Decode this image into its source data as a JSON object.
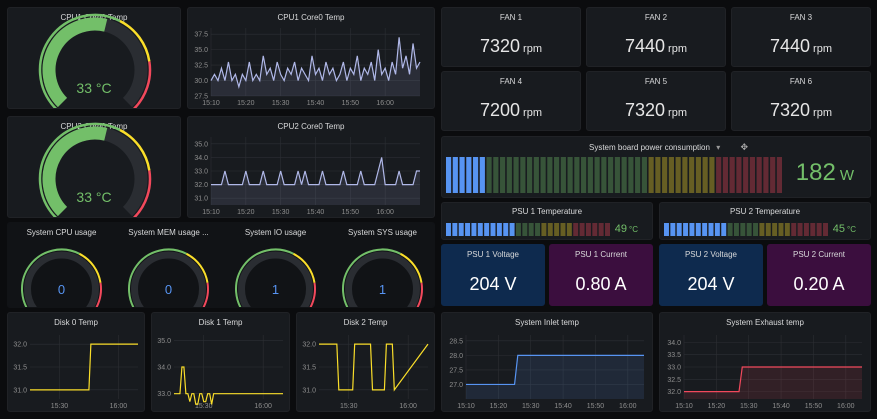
{
  "colors": {
    "green": "#73bf69",
    "yellow": "#fade2a",
    "red": "#f2495c",
    "blue": "#5794f2",
    "axis": "#8e8e8e",
    "grid": "#2c2f34"
  },
  "gauges": [
    {
      "id": "cpu1g",
      "title": "CPU1 Core0 Temp",
      "value": "33 °C",
      "fraction": 0.55,
      "color": "#73bf69",
      "scale": true
    },
    {
      "id": "cpu2g",
      "title": "CPU2 Core0 Temp",
      "value": "33 °C",
      "fraction": 0.55,
      "color": "#73bf69",
      "scale": true
    },
    {
      "id": "sysg1",
      "title": "System CPU usage",
      "value": "0",
      "fraction": 0.0,
      "color": "#5794f2",
      "scale": false
    },
    {
      "id": "sysg2",
      "title": "System MEM usage ...",
      "value": "0",
      "fraction": 0.0,
      "color": "#5794f2",
      "scale": false
    },
    {
      "id": "sysg3",
      "title": "System IO usage",
      "value": "1",
      "fraction": 0.01,
      "color": "#5794f2",
      "scale": false
    },
    {
      "id": "sysg4",
      "title": "System SYS usage",
      "value": "1",
      "fraction": 0.01,
      "color": "#5794f2",
      "scale": false
    }
  ],
  "fans": [
    {
      "name": "FAN 1",
      "value": "7320",
      "unit": "rpm"
    },
    {
      "name": "FAN 2",
      "value": "7440",
      "unit": "rpm"
    },
    {
      "name": "FAN 3",
      "value": "7440",
      "unit": "rpm"
    },
    {
      "name": "FAN 4",
      "value": "7200",
      "unit": "rpm"
    },
    {
      "name": "FAN 5",
      "value": "7320",
      "unit": "rpm"
    },
    {
      "name": "FAN 6",
      "value": "7320",
      "unit": "rpm"
    }
  ],
  "power": {
    "title": "System board power consumption",
    "value": "182",
    "unit": "W",
    "fraction": 0.12,
    "segments": 50
  },
  "psu_temps": [
    {
      "title": "PSU 1 Temperature",
      "value": "49",
      "unit": "°C",
      "fraction": 0.42
    },
    {
      "title": "PSU 2 Temperature",
      "value": "45",
      "unit": "°C",
      "fraction": 0.38
    }
  ],
  "psu_stats": [
    {
      "title": "PSU 1 Voltage",
      "value": "204 V",
      "bg": "#0e2a4e"
    },
    {
      "title": "PSU 1 Current",
      "value": "0.80 A",
      "bg": "#3b0e3e"
    },
    {
      "title": "PSU 2 Voltage",
      "value": "204 V",
      "bg": "#0e2a4e"
    },
    {
      "title": "PSU 2 Current",
      "value": "0.20 A",
      "bg": "#3b0e3e"
    }
  ],
  "chart_data": [
    {
      "id": "c1",
      "type": "line",
      "title": "CPU1 Core0 Temp",
      "color": "#b0b8e8",
      "fill": true,
      "ylim": [
        27.5,
        38.5
      ],
      "yticks": [
        27.5,
        30.0,
        32.5,
        35.0,
        37.5
      ],
      "ytick_labels": [
        "27.5",
        "30.0",
        "32.5",
        "35.0",
        "37.5"
      ],
      "xlim": [
        0,
        60
      ],
      "xticks": [
        0,
        10,
        20,
        30,
        40,
        50
      ],
      "xtick_labels": [
        "15:10",
        "15:20",
        "15:30",
        "15:40",
        "15:50",
        "16:00"
      ],
      "x": [
        0,
        1,
        2,
        3,
        4,
        5,
        6,
        7,
        8,
        9,
        10,
        11,
        12,
        13,
        14,
        15,
        16,
        17,
        18,
        19,
        20,
        21,
        22,
        23,
        24,
        25,
        26,
        27,
        28,
        29,
        30,
        31,
        32,
        33,
        34,
        35,
        36,
        37,
        38,
        39,
        40,
        41,
        42,
        43,
        44,
        45,
        46,
        47,
        48,
        49,
        50,
        51,
        52,
        53,
        54,
        55,
        56,
        57,
        58,
        59,
        60
      ],
      "y": [
        30,
        31,
        30,
        32,
        30,
        33,
        30,
        31,
        29,
        31,
        30,
        33,
        30,
        31,
        30,
        34,
        31,
        32,
        30,
        33,
        31,
        30,
        32,
        31,
        33,
        30,
        32,
        31,
        30,
        34,
        31,
        32,
        30,
        33,
        31,
        32,
        30,
        31,
        33,
        30,
        32,
        31,
        34,
        30,
        32,
        31,
        33,
        30,
        35,
        31,
        32,
        30,
        33,
        31,
        37,
        32,
        34,
        31,
        36,
        32,
        33
      ]
    },
    {
      "id": "c2",
      "type": "line",
      "title": "CPU2 Core0 Temp",
      "color": "#b0b8e8",
      "fill": true,
      "ylim": [
        30.5,
        35.5
      ],
      "yticks": [
        31,
        32,
        33,
        34,
        35
      ],
      "ytick_labels": [
        "31.0",
        "32.0",
        "33.0",
        "34.0",
        "35.0"
      ],
      "xlim": [
        0,
        60
      ],
      "xticks": [
        0,
        10,
        20,
        30,
        40,
        50
      ],
      "xtick_labels": [
        "15:10",
        "15:20",
        "15:30",
        "15:40",
        "15:50",
        "16:00"
      ],
      "x": [
        0,
        3,
        4,
        5,
        9,
        10,
        11,
        14,
        15,
        16,
        19,
        20,
        21,
        24,
        25,
        26,
        27,
        28,
        29,
        31,
        32,
        33,
        34,
        37,
        38,
        39,
        42,
        43,
        44,
        47,
        48,
        49,
        50,
        53,
        54,
        55,
        58,
        59,
        60
      ],
      "y": [
        32,
        32,
        33,
        32,
        32,
        33,
        32,
        32,
        33,
        32,
        32,
        33,
        32,
        32,
        33,
        32,
        33,
        32,
        32,
        32,
        33,
        32,
        32,
        32,
        33,
        32,
        32,
        33,
        32,
        32,
        33,
        34,
        32,
        32,
        33,
        32,
        32,
        33,
        33
      ]
    },
    {
      "id": "c3",
      "type": "line",
      "title": "Disk 0 Temp",
      "color": "#fade2a",
      "fill": false,
      "ylim": [
        30.8,
        32.2
      ],
      "yticks": [
        31,
        31.5,
        32
      ],
      "ytick_labels": [
        "31.0",
        "31.5",
        "32.0"
      ],
      "xlim": [
        0,
        55
      ],
      "xticks": [
        15,
        45
      ],
      "xtick_labels": [
        "15:30",
        "16:00"
      ],
      "x": [
        0,
        30,
        31,
        55
      ],
      "y": [
        31,
        31,
        32,
        32
      ]
    },
    {
      "id": "c4",
      "type": "line",
      "title": "Disk 1 Temp",
      "color": "#fade2a",
      "fill": false,
      "ylim": [
        32.8,
        35.2
      ],
      "yticks": [
        33,
        34,
        35
      ],
      "ytick_labels": [
        "33.0",
        "34.0",
        "35.0"
      ],
      "xlim": [
        0,
        55
      ],
      "xticks": [
        15,
        45
      ],
      "xtick_labels": [
        "15:30",
        "16:00"
      ],
      "x": [
        0,
        3,
        4,
        5,
        6,
        7,
        8,
        9,
        10,
        11,
        12,
        13,
        14,
        15,
        16,
        17,
        18,
        19,
        20,
        21,
        55
      ],
      "y": [
        33,
        33,
        34,
        34,
        33,
        33,
        32.7,
        33,
        33,
        32.6,
        32.6,
        33,
        33,
        32.7,
        32.7,
        33,
        33,
        32.6,
        33,
        33,
        33
      ]
    },
    {
      "id": "c5",
      "type": "line",
      "title": "Disk 2 Temp",
      "color": "#fade2a",
      "fill": false,
      "ylim": [
        30.8,
        32.2
      ],
      "yticks": [
        31,
        31.5,
        32
      ],
      "ytick_labels": [
        "31.0",
        "31.5",
        "32.0"
      ],
      "xlim": [
        0,
        55
      ],
      "xticks": [
        15,
        45
      ],
      "xtick_labels": [
        "15:30",
        "16:00"
      ],
      "x": [
        0,
        9,
        10,
        17,
        18,
        26,
        27,
        33,
        34,
        37,
        38,
        55
      ],
      "y": [
        32,
        32,
        31,
        31,
        32,
        32,
        31,
        31,
        32,
        32,
        31,
        32
      ]
    },
    {
      "id": "c6",
      "type": "line",
      "title": "System Inlet temp",
      "color": "#5794f2",
      "fill": true,
      "ylim": [
        26.5,
        28.7
      ],
      "yticks": [
        27,
        27.5,
        28,
        28.5
      ],
      "ytick_labels": [
        "27.0",
        "27.5",
        "28.0",
        "28.5"
      ],
      "xlim": [
        0,
        55
      ],
      "xticks": [
        0,
        10,
        20,
        30,
        40,
        50
      ],
      "xtick_labels": [
        "15:10",
        "15:20",
        "15:30",
        "15:40",
        "15:50",
        "16:00"
      ],
      "x": [
        0,
        15,
        16,
        55
      ],
      "y": [
        27,
        27,
        28,
        28
      ]
    },
    {
      "id": "c7",
      "type": "line",
      "title": "System Exhaust temp",
      "color": "#f2495c",
      "fill": true,
      "ylim": [
        31.7,
        34.3
      ],
      "yticks": [
        32,
        32.5,
        33,
        33.5,
        34
      ],
      "ytick_labels": [
        "32.0",
        "32.5",
        "33.0",
        "33.5",
        "34.0"
      ],
      "xlim": [
        0,
        55
      ],
      "xticks": [
        0,
        10,
        20,
        30,
        40,
        50
      ],
      "xtick_labels": [
        "15:10",
        "15:20",
        "15:30",
        "15:40",
        "15:50",
        "16:00"
      ],
      "x": [
        0,
        17,
        18,
        55
      ],
      "y": [
        32,
        32,
        33,
        33
      ]
    }
  ]
}
